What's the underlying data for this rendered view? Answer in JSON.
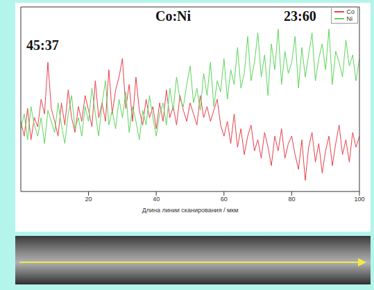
{
  "chart_data": {
    "type": "line",
    "title": "Co:Ni",
    "annotations": [
      "45:37",
      "23:60"
    ],
    "x_label": "Длина линии сканирования / мкм",
    "x": [
      0,
      1,
      2,
      3,
      4,
      5,
      6,
      7,
      8,
      9,
      10,
      11,
      12,
      13,
      14,
      15,
      16,
      17,
      18,
      19,
      20,
      21,
      22,
      23,
      24,
      25,
      26,
      27,
      28,
      29,
      30,
      31,
      32,
      33,
      34,
      35,
      36,
      37,
      38,
      39,
      40,
      41,
      42,
      43,
      44,
      45,
      46,
      47,
      48,
      49,
      50,
      51,
      52,
      53,
      54,
      55,
      56,
      57,
      58,
      59,
      60,
      61,
      62,
      63,
      64,
      65,
      66,
      67,
      68,
      69,
      70,
      71,
      72,
      73,
      74,
      75,
      76,
      77,
      78,
      79,
      80,
      81,
      82,
      83,
      84,
      85,
      86,
      87,
      88,
      89,
      90,
      91,
      92,
      93,
      94,
      95,
      96,
      97,
      98,
      99,
      100
    ],
    "series": [
      {
        "name": "Co",
        "color": "#e8404c",
        "values": [
          38,
          30,
          45,
          28,
          40,
          35,
          50,
          42,
          70,
          45,
          38,
          30,
          48,
          36,
          55,
          40,
          32,
          46,
          38,
          52,
          44,
          35,
          60,
          40,
          48,
          38,
          66,
          42,
          55,
          62,
          72,
          45,
          58,
          38,
          62,
          44,
          36,
          50,
          40,
          46,
          34,
          48,
          38,
          55,
          40,
          46,
          36,
          52,
          44,
          38,
          48,
          42,
          36,
          52,
          40,
          46,
          38,
          44,
          50,
          36,
          30,
          38,
          26,
          42,
          24,
          34,
          20,
          30,
          36,
          22,
          28,
          18,
          32,
          24,
          14,
          30,
          22,
          34,
          18,
          26,
          30,
          20,
          12,
          28,
          6,
          24,
          32,
          16,
          26,
          10,
          22,
          30,
          14,
          26,
          36,
          20,
          28,
          16,
          32,
          24,
          30
        ]
      },
      {
        "name": "Ni",
        "color": "#5cd65c",
        "values": [
          34,
          42,
          28,
          46,
          36,
          30,
          40,
          26,
          44,
          38,
          32,
          48,
          36,
          26,
          42,
          52,
          34,
          40,
          30,
          46,
          38,
          56,
          42,
          30,
          48,
          60,
          36,
          44,
          34,
          50,
          40,
          54,
          32,
          46,
          38,
          28,
          44,
          36,
          52,
          40,
          30,
          42,
          48,
          36,
          56,
          44,
          62,
          50,
          46,
          58,
          68,
          48,
          56,
          44,
          64,
          52,
          70,
          46,
          60,
          54,
          72,
          50,
          66,
          58,
          78,
          56,
          64,
          84,
          60,
          70,
          86,
          62,
          74,
          52,
          80,
          66,
          88,
          58,
          76,
          64,
          70,
          84,
          56,
          78,
          62,
          74,
          86,
          60,
          72,
          80,
          66,
          88,
          58,
          76,
          70,
          62,
          82,
          68,
          74,
          60,
          72
        ]
      }
    ],
    "xlim": [
      0,
      100
    ],
    "xticks": [
      20,
      40,
      60,
      80,
      100
    ],
    "ylim": [
      0,
      100
    ],
    "tick_labels": "x",
    "legend": "upper right",
    "grid": false
  }
}
